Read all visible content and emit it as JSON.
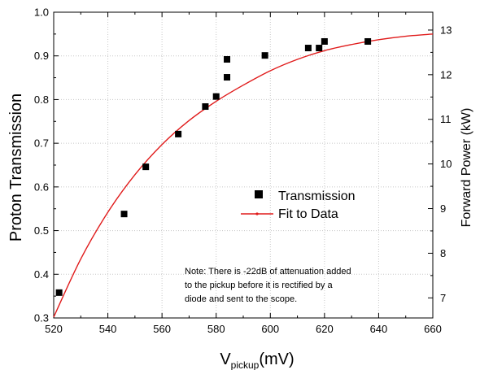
{
  "chart_data": {
    "type": "scatter",
    "xlabel": {
      "main": "V",
      "sub": "pickup",
      "unit": "(mV)"
    },
    "ylabel": "Proton Transmission",
    "y2label": "Forward Power (kW)",
    "xlim": [
      520,
      660
    ],
    "ylim": [
      0.3,
      1.0
    ],
    "y2lim": [
      6.55,
      13.4
    ],
    "xticks": [
      "520",
      "540",
      "560",
      "580",
      "600",
      "620",
      "640",
      "660"
    ],
    "yticks": [
      "0.3",
      "0.4",
      "0.5",
      "0.6",
      "0.7",
      "0.8",
      "0.9",
      "1.0"
    ],
    "y2ticks": [
      "7",
      "8",
      "9",
      "10",
      "11",
      "12",
      "13"
    ],
    "grid": true,
    "legend_position": "center-right",
    "series": [
      {
        "name": "Transmission",
        "kind": "scatter",
        "marker": "square",
        "color": "#000000",
        "x": [
          522,
          546,
          554,
          566,
          576,
          580,
          584,
          584,
          598,
          614,
          618,
          620,
          636
        ],
        "y": [
          0.358,
          0.538,
          0.646,
          0.721,
          0.784,
          0.807,
          0.851,
          0.892,
          0.901,
          0.918,
          0.918,
          0.933,
          0.933
        ]
      },
      {
        "name": "Fit to Data",
        "kind": "line",
        "color": "#e01b1b",
        "x": [
          520,
          530,
          540,
          550,
          560,
          570,
          580,
          590,
          600,
          610,
          620,
          630,
          640,
          650,
          660
        ],
        "y": [
          0.302,
          0.435,
          0.542,
          0.628,
          0.697,
          0.752,
          0.796,
          0.833,
          0.866,
          0.892,
          0.912,
          0.926,
          0.937,
          0.945,
          0.95
        ]
      }
    ],
    "note": [
      "Note: There is -22dB of attenuation added",
      "to the pickup before it is rectified by a",
      "diode and sent to the scope."
    ]
  }
}
